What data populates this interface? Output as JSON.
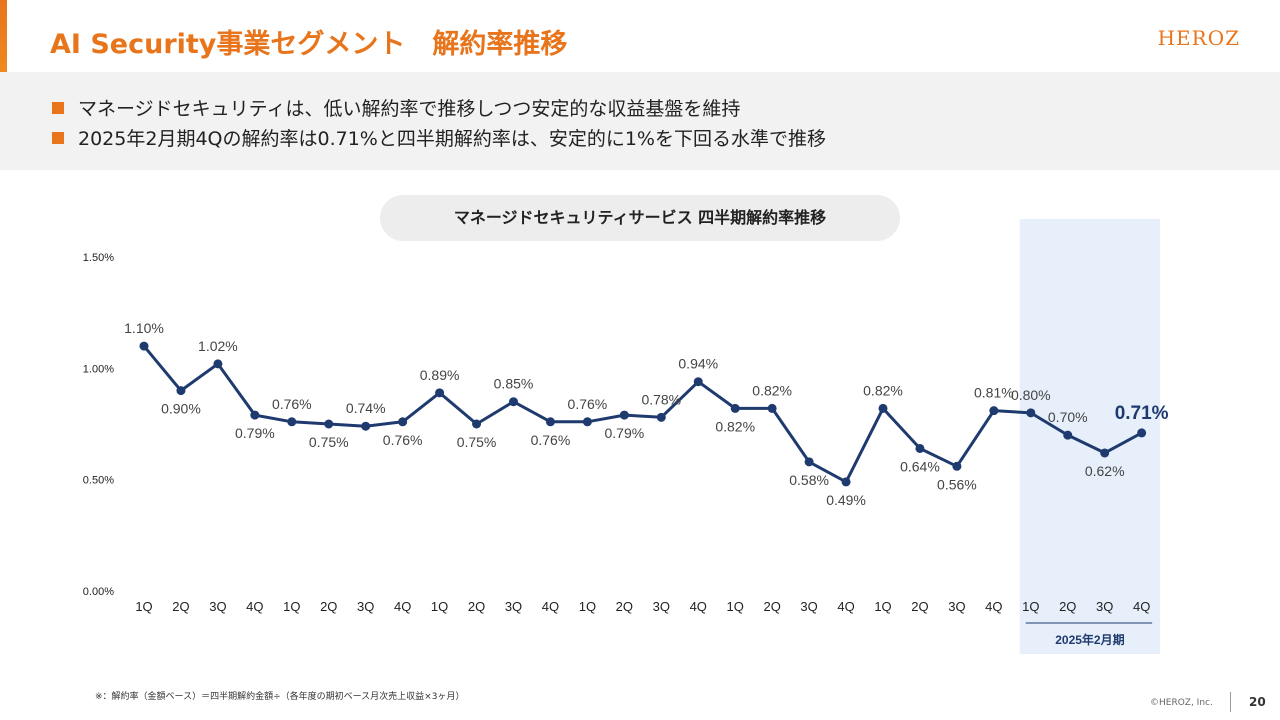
{
  "header": {
    "title": "AI Security事業セグメント　解約率推移",
    "logo": "HEROZ"
  },
  "bullets": [
    "マネージドセキュリティは、低い解約率で推移しつつ安定的な収益基盤を維持",
    "2025年2月期4Qの解約率は0.71%と四半期解約率は、安定的に1%を下回る水準で推移"
  ],
  "chart_data": {
    "type": "line",
    "title": "マネージドセキュリティサービス 四半期解約率推移",
    "y_ticks": [
      "0.00%",
      "0.50%",
      "1.00%",
      "1.50%"
    ],
    "ylim": [
      0,
      1.5
    ],
    "grid": false,
    "categories": [
      "1Q",
      "2Q",
      "3Q",
      "4Q",
      "1Q",
      "2Q",
      "3Q",
      "4Q",
      "1Q",
      "2Q",
      "3Q",
      "4Q",
      "1Q",
      "2Q",
      "3Q",
      "4Q",
      "1Q",
      "2Q",
      "3Q",
      "4Q",
      "1Q",
      "2Q",
      "3Q",
      "4Q",
      "1Q",
      "2Q",
      "3Q",
      "4Q"
    ],
    "values": [
      1.1,
      0.9,
      1.02,
      0.79,
      0.76,
      0.75,
      0.74,
      0.76,
      0.89,
      0.75,
      0.85,
      0.76,
      0.76,
      0.79,
      0.78,
      0.94,
      0.82,
      0.82,
      0.58,
      0.49,
      0.82,
      0.64,
      0.56,
      0.81,
      0.8,
      0.7,
      0.62,
      0.71
    ],
    "labels": [
      "1.10%",
      "0.90%",
      "1.02%",
      "0.79%",
      "0.76%",
      "0.75%",
      "0.74%",
      "0.76%",
      "0.89%",
      "0.75%",
      "0.85%",
      "0.76%",
      "0.76%",
      "0.79%",
      "0.78%",
      "0.94%",
      "0.82%",
      "0.82%",
      "0.58%",
      "0.49%",
      "0.82%",
      "0.64%",
      "0.56%",
      "0.81%",
      "0.80%",
      "0.70%",
      "0.62%",
      "0.71%"
    ],
    "label_position": [
      "above",
      "below",
      "above",
      "below",
      "above",
      "below",
      "above",
      "below",
      "above",
      "below",
      "above",
      "below",
      "above",
      "below",
      "above",
      "above",
      "below",
      "above",
      "below",
      "below",
      "above",
      "below",
      "below",
      "above",
      "above",
      "above",
      "below",
      "above"
    ],
    "highlight_period_label": "2025年2月期",
    "highlight_indices": [
      24,
      25,
      26,
      27
    ],
    "emphasized_index": 27,
    "line_color": "#1f3a6e",
    "highlight_color": "#e6effa"
  },
  "footer": {
    "footnote": "※：解約率（金額ベース）＝四半期解約金額÷（各年度の期初ベース月次売上収益×3ヶ月）",
    "copyright": "©HEROZ, Inc.",
    "page_number": "20"
  }
}
